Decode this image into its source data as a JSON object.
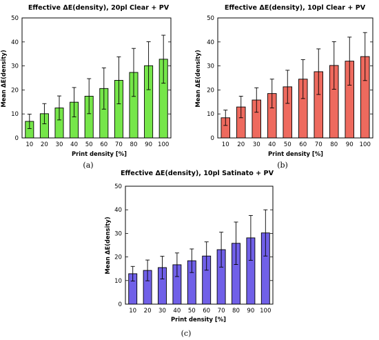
{
  "chart_data": [
    {
      "type": "bar",
      "title": "Effective ΔE(density), 20pl Clear + PV",
      "xlabel": "Print density [%]",
      "ylabel": "Mean ΔE(density)",
      "categories": [
        "10",
        "20",
        "30",
        "40",
        "50",
        "60",
        "70",
        "80",
        "90",
        "100"
      ],
      "values": [
        6.9,
        10.1,
        12.5,
        14.9,
        17.4,
        20.6,
        24.0,
        27.3,
        30.1,
        32.8
      ],
      "error": [
        3.0,
        4.2,
        5.0,
        6.1,
        7.3,
        8.6,
        9.8,
        10.0,
        10.0,
        10.0
      ],
      "ylim": [
        0,
        50
      ],
      "yticks": [
        0,
        10,
        20,
        30,
        40,
        50
      ],
      "bar_color": "#76e64a",
      "grid": false,
      "caption": "(a)"
    },
    {
      "type": "bar",
      "title": "Effective ΔE(density), 10pl Clear + PV",
      "xlabel": "Print density [%]",
      "ylabel": "Mean ΔE(density)",
      "categories": [
        "10",
        "20",
        "30",
        "40",
        "50",
        "60",
        "70",
        "80",
        "90",
        "100"
      ],
      "values": [
        8.4,
        12.9,
        15.8,
        18.5,
        21.3,
        24.5,
        27.6,
        30.2,
        32.0,
        33.9
      ],
      "error": [
        3.2,
        4.5,
        5.1,
        6.0,
        6.9,
        8.1,
        9.5,
        9.9,
        10.0,
        10.0
      ],
      "ylim": [
        0,
        50
      ],
      "yticks": [
        0,
        10,
        20,
        30,
        40,
        50
      ],
      "bar_color": "#ee6a5e",
      "grid": false,
      "caption": "(b)"
    },
    {
      "type": "bar",
      "title": "Effective ΔE(density), 10pl Satinato + PV",
      "xlabel": "Print density [%]",
      "ylabel": "Mean ΔE(density)",
      "categories": [
        "10",
        "20",
        "30",
        "40",
        "50",
        "60",
        "70",
        "80",
        "90",
        "100"
      ],
      "values": [
        12.9,
        14.3,
        15.5,
        16.7,
        18.4,
        20.4,
        23.1,
        25.8,
        28.1,
        30.2
      ],
      "error": [
        3.1,
        4.4,
        4.8,
        5.0,
        5.0,
        6.0,
        7.4,
        9.0,
        9.5,
        9.8
      ],
      "ylim": [
        0,
        50
      ],
      "yticks": [
        0,
        10,
        20,
        30,
        40,
        50
      ],
      "bar_color": "#7060e8",
      "grid": false,
      "caption": "(c)"
    }
  ]
}
